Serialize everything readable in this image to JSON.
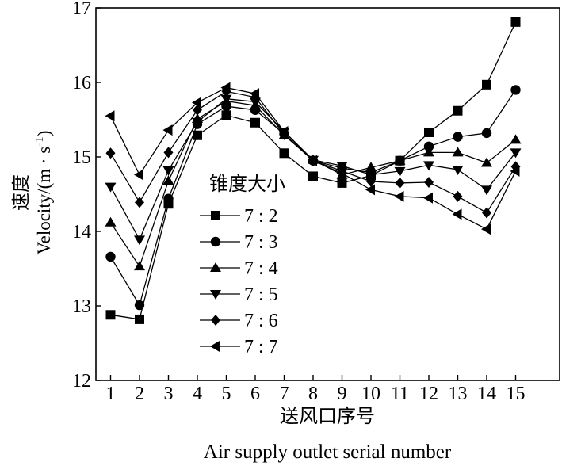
{
  "chart_data": {
    "type": "line",
    "xlabel_cn": "送风口序号",
    "xlabel_en": "Air supply outlet serial number",
    "ylabel_cn": "速度",
    "ylabel_en_main": "Velocity/(m · s",
    "ylabel_en_sup": "-1",
    "ylabel_en_close": ")",
    "ylim": [
      12,
      17
    ],
    "xlim": [
      0.5,
      15.5
    ],
    "x_ticks": [
      1,
      2,
      3,
      4,
      5,
      6,
      7,
      8,
      9,
      10,
      11,
      12,
      13,
      14,
      15
    ],
    "y_ticks": [
      12,
      13,
      14,
      15,
      16,
      17
    ],
    "grid": false,
    "legend_title": "锥度大小",
    "legend_position": "center-left",
    "x": [
      1,
      2,
      3,
      4,
      5,
      6,
      7,
      8,
      9,
      10,
      11,
      12,
      13,
      14,
      15
    ],
    "series": [
      {
        "name": "7 : 2",
        "marker": "square",
        "values": [
          12.88,
          12.82,
          14.37,
          15.29,
          15.56,
          15.46,
          15.05,
          14.74,
          14.65,
          14.75,
          14.95,
          15.33,
          15.62,
          15.97,
          16.81
        ]
      },
      {
        "name": "7 : 3",
        "marker": "circle",
        "values": [
          13.66,
          13.01,
          14.44,
          15.44,
          15.68,
          15.63,
          15.31,
          14.95,
          14.85,
          14.79,
          14.95,
          15.14,
          15.27,
          15.32,
          15.9
        ]
      },
      {
        "name": "7 : 4",
        "marker": "triangle-up",
        "values": [
          14.12,
          13.53,
          14.68,
          15.51,
          15.75,
          15.69,
          15.29,
          14.96,
          14.76,
          14.86,
          14.95,
          15.06,
          15.06,
          14.92,
          15.23
        ]
      },
      {
        "name": "7 : 5",
        "marker": "triangle-down",
        "values": [
          14.6,
          13.89,
          14.82,
          15.47,
          15.78,
          15.74,
          15.34,
          14.96,
          14.88,
          14.76,
          14.81,
          14.89,
          14.83,
          14.56,
          15.06
        ]
      },
      {
        "name": "7 : 6",
        "marker": "diamond",
        "values": [
          15.05,
          14.39,
          15.06,
          15.63,
          15.88,
          15.8,
          15.3,
          14.95,
          14.81,
          14.67,
          14.65,
          14.66,
          14.47,
          14.25,
          14.87
        ]
      },
      {
        "name": "7 : 7",
        "marker": "triangle-left",
        "values": [
          15.55,
          14.76,
          15.36,
          15.73,
          15.93,
          15.85,
          15.34,
          14.95,
          14.78,
          14.56,
          14.47,
          14.45,
          14.23,
          14.03,
          14.81
        ]
      }
    ]
  }
}
